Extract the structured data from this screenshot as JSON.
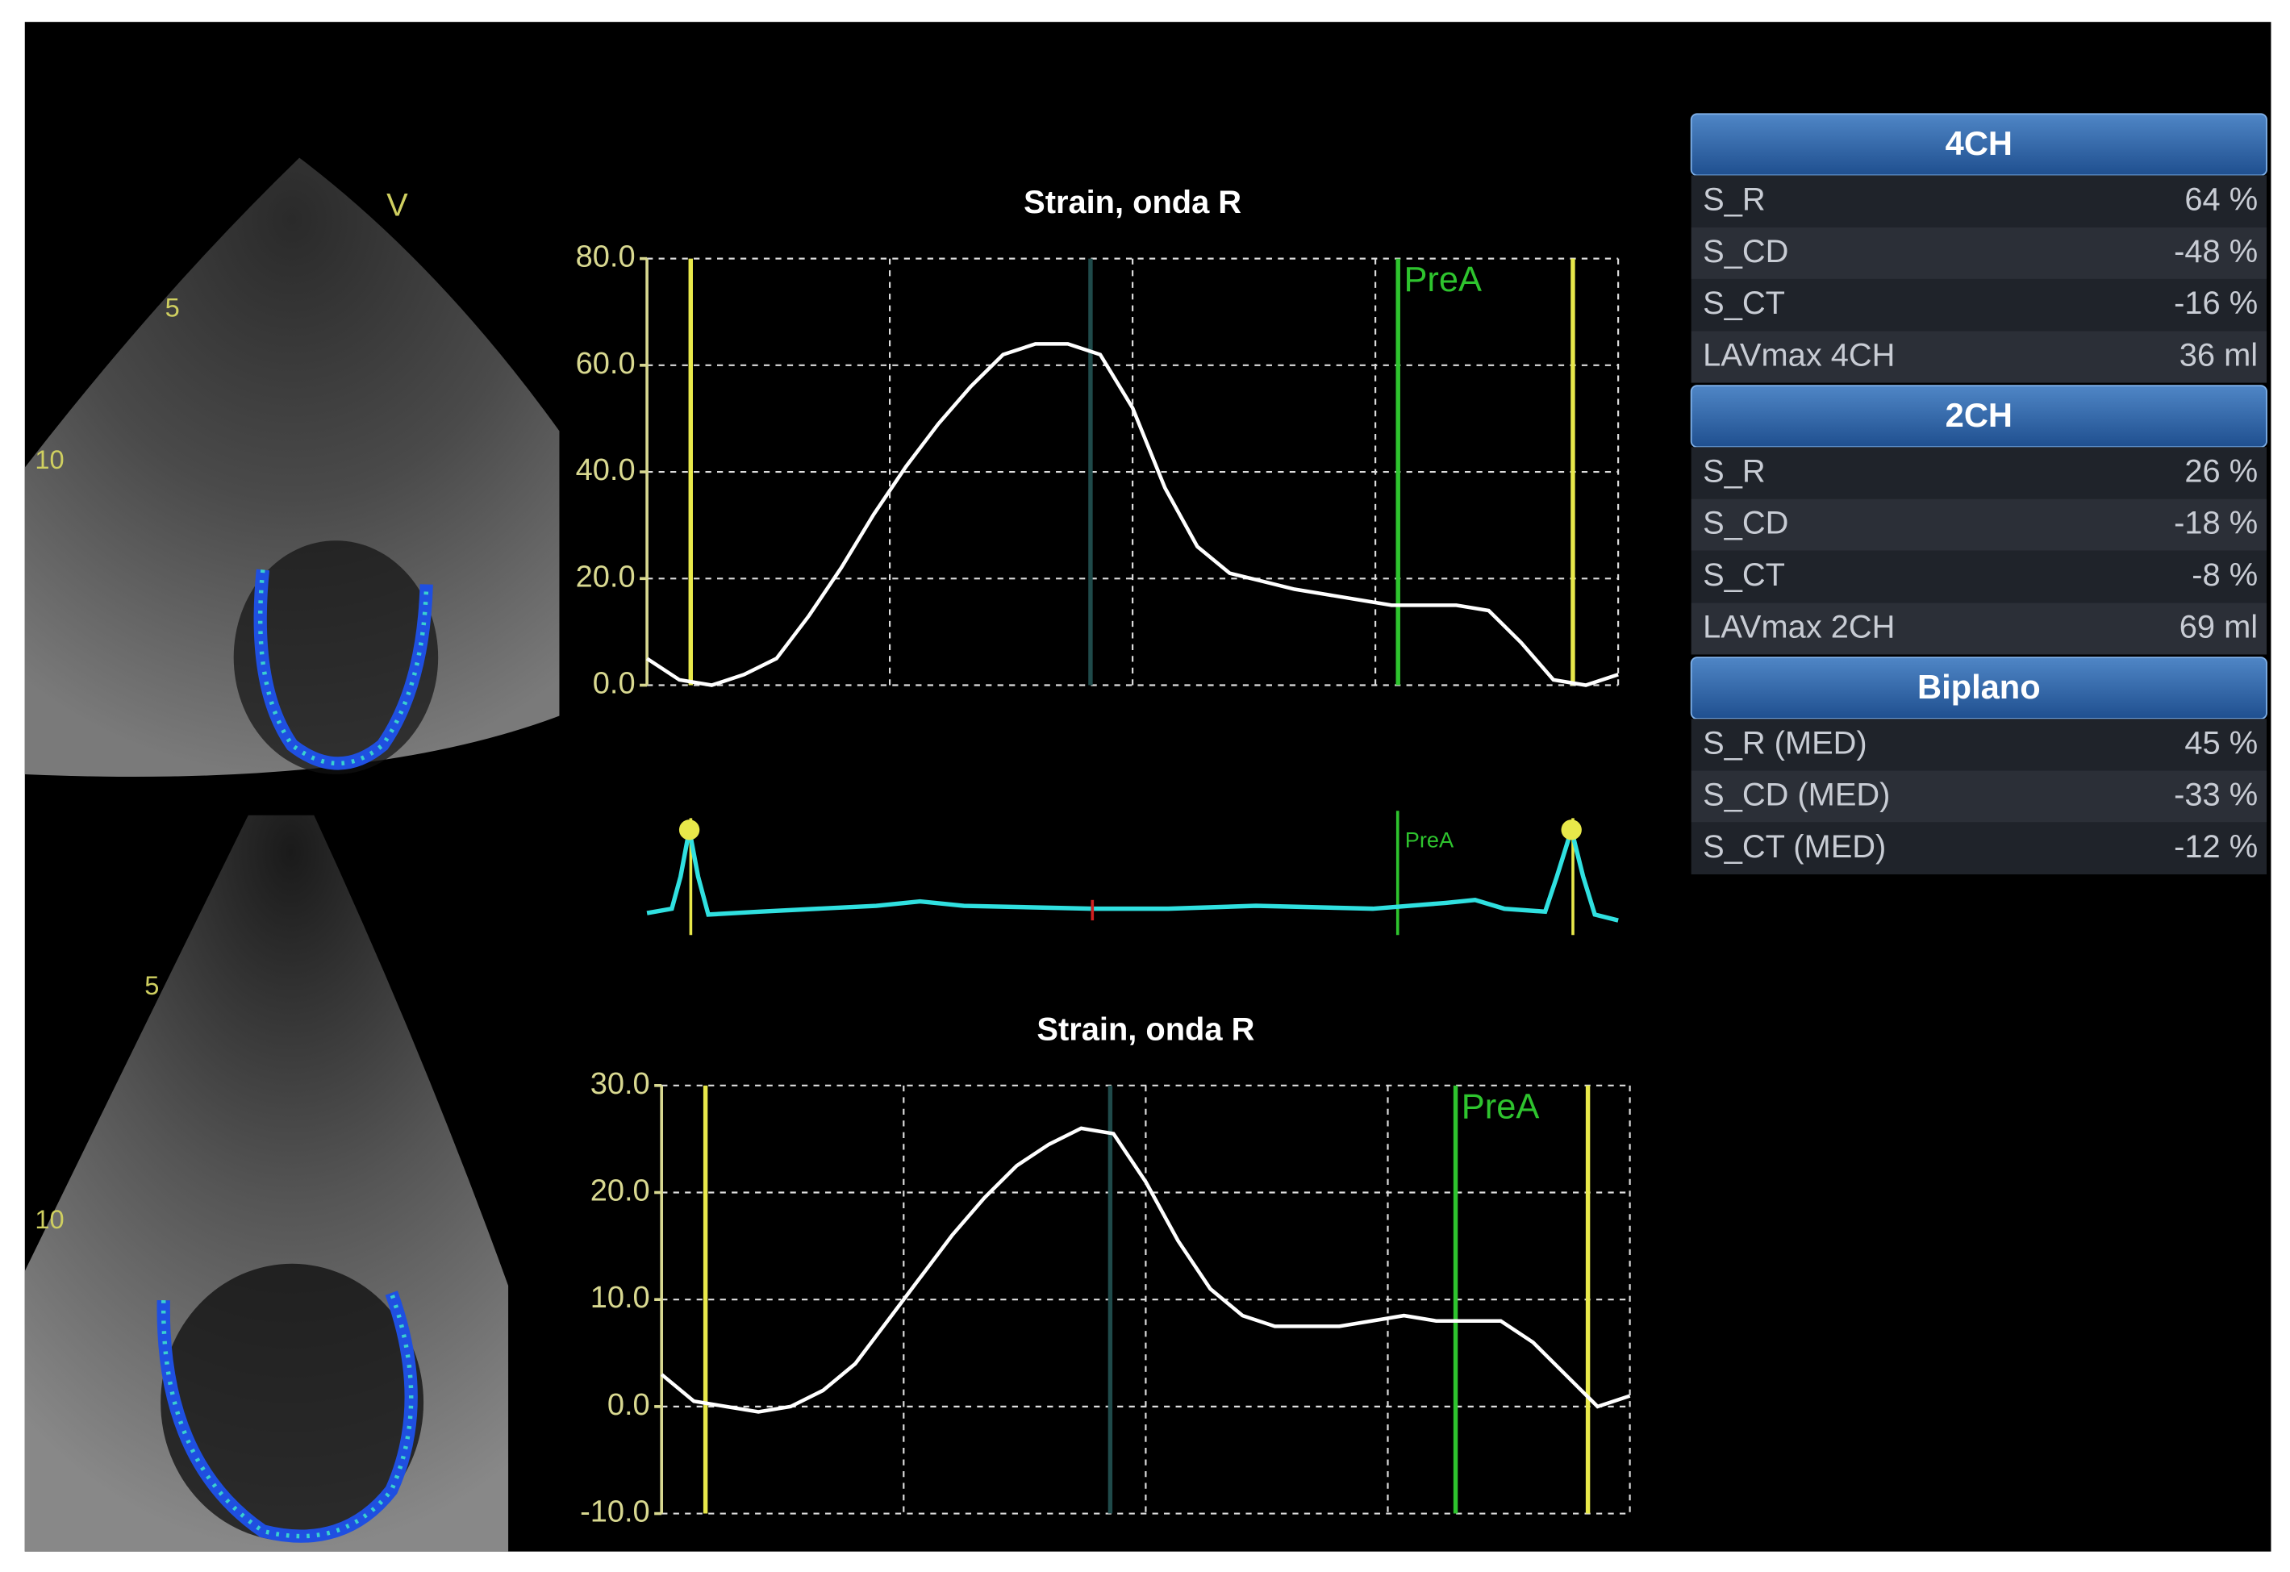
{
  "chart_data": [
    {
      "type": "line",
      "title": "Strain, onda R",
      "color": "#ffffff",
      "values": [
        5,
        1,
        0,
        2,
        5,
        13,
        22,
        32,
        41,
        49,
        56,
        62,
        64,
        64,
        62,
        52,
        37,
        26,
        21,
        19.5,
        18,
        17,
        16,
        15,
        15,
        15,
        14,
        8,
        1,
        0,
        2
      ],
      "xlim": [
        0,
        30
      ],
      "ylim": [
        0,
        80
      ],
      "yticks": [
        {
          "value": 0,
          "label": "0.0"
        },
        {
          "value": 20,
          "label": "20.0"
        },
        {
          "value": 40,
          "label": "40.0"
        },
        {
          "value": 60,
          "label": "60.0"
        },
        {
          "value": 80,
          "label": "80.0"
        }
      ],
      "grid": true,
      "markers": [
        {
          "x": 1.35,
          "color": "#e8e84a"
        },
        {
          "x": 13.7,
          "color": "#1f4a4a"
        },
        {
          "x": 23.2,
          "color": "#2ec42e",
          "label": "PreA"
        },
        {
          "x": 28.6,
          "color": "#e8e84a"
        }
      ]
    },
    {
      "type": "line",
      "title": "Strain, onda R",
      "color": "#ffffff",
      "values": [
        3,
        0.5,
        0,
        -0.5,
        0,
        1.5,
        4,
        8,
        12,
        16,
        19.5,
        22.5,
        24.5,
        26,
        25.5,
        21,
        15.5,
        11,
        8.5,
        7.5,
        7.5,
        7.5,
        8,
        8.5,
        8,
        8,
        8,
        6,
        3,
        0,
        1
      ],
      "xlim": [
        0,
        30
      ],
      "ylim": [
        -10,
        30
      ],
      "yticks": [
        {
          "value": -10,
          "label": "-10.0"
        },
        {
          "value": 0,
          "label": "0.0"
        },
        {
          "value": 10,
          "label": "10.0"
        },
        {
          "value": 20,
          "label": "20.0"
        },
        {
          "value": 30,
          "label": "30.0"
        }
      ],
      "grid": true,
      "markers": [
        {
          "x": 1.36,
          "color": "#e8e84a"
        },
        {
          "x": 13.9,
          "color": "#1f4a4a"
        },
        {
          "x": 24.6,
          "color": "#2ec42e",
          "label": "PreA"
        },
        {
          "x": 28.7,
          "color": "#e8e84a"
        }
      ]
    }
  ],
  "echo": {
    "top": [
      "V",
      "5",
      "10"
    ],
    "bottom": [
      "5",
      "10"
    ]
  },
  "ecg": {
    "label": "PreA"
  },
  "panel": [
    {
      "title": "4CH",
      "rows": [
        [
          "S_R",
          "64 %"
        ],
        [
          "S_CD",
          "-48 %"
        ],
        [
          "S_CT",
          "-16 %"
        ],
        [
          "LAVmax 4CH",
          "36 ml"
        ]
      ]
    },
    {
      "title": "2CH",
      "rows": [
        [
          "S_R",
          "26 %"
        ],
        [
          "S_CD",
          "-18 %"
        ],
        [
          "S_CT",
          "-8 %"
        ],
        [
          "LAVmax 2CH",
          "69 ml"
        ]
      ]
    },
    {
      "title": "Biplano",
      "rows": [
        [
          "S_R (MED)",
          "45 %"
        ],
        [
          "S_CD (MED)",
          "-33 %"
        ],
        [
          "S_CT (MED)",
          "-12 %"
        ]
      ]
    }
  ]
}
